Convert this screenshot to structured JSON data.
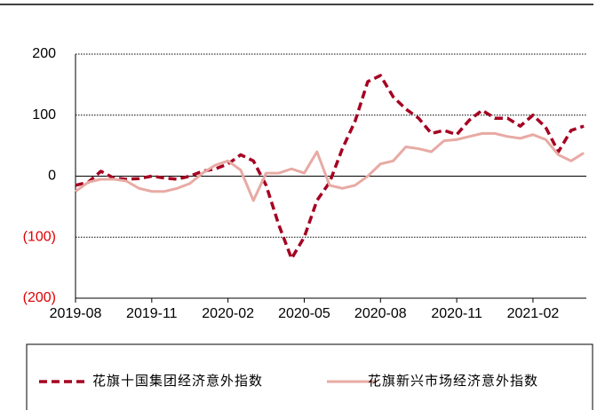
{
  "chart_data": {
    "type": "line",
    "x": [
      0,
      0.5,
      1,
      1.5,
      2,
      2.5,
      3,
      3.5,
      4,
      4.5,
      5,
      5.5,
      6,
      6.5,
      7,
      7.5,
      8,
      8.5,
      9,
      9.5,
      10,
      10.5,
      11,
      11.5,
      12,
      12.5,
      13,
      13.5,
      14,
      14.5,
      15,
      15.5,
      16,
      16.5,
      17,
      17.5,
      18,
      18.5,
      19,
      19.5,
      20
    ],
    "series": [
      {
        "name": "花旗十国集团经济意外指数",
        "color": "#a50021",
        "dashed": true,
        "values": [
          -15,
          -10,
          8,
          -3,
          -5,
          -4,
          0,
          -3,
          -5,
          0,
          8,
          12,
          20,
          35,
          25,
          -15,
          -80,
          -135,
          -100,
          -40,
          -10,
          45,
          90,
          155,
          165,
          130,
          110,
          95,
          70,
          75,
          68,
          92,
          108,
          95,
          95,
          82,
          100,
          80,
          40,
          75,
          82
        ]
      },
      {
        "name": "花旗新兴市场经济意外指数",
        "color": "#e8aaa4",
        "dashed": false,
        "values": [
          -25,
          -10,
          -5,
          -5,
          -8,
          -20,
          -25,
          -25,
          -20,
          -12,
          5,
          18,
          25,
          10,
          -40,
          5,
          5,
          12,
          5,
          40,
          -15,
          -20,
          -15,
          0,
          20,
          25,
          48,
          45,
          40,
          58,
          60,
          65,
          70,
          70,
          65,
          62,
          68,
          60,
          35,
          25,
          38
        ]
      }
    ],
    "xlim": [
      0,
      20.1
    ],
    "xticks": [
      {
        "value": 0,
        "label": "2019-08"
      },
      {
        "value": 3,
        "label": "2019-11"
      },
      {
        "value": 6,
        "label": "2020-02"
      },
      {
        "value": 9,
        "label": "2020-05"
      },
      {
        "value": 12,
        "label": "2020-08"
      },
      {
        "value": 15,
        "label": "2020-11"
      },
      {
        "value": 18,
        "label": "2021-02"
      }
    ],
    "ylim": [
      -200,
      200
    ],
    "yticks": [
      {
        "value": -200,
        "label": "(200)"
      },
      {
        "value": -100,
        "label": "(100)"
      },
      0,
      100,
      200
    ],
    "negative_tick_color": "#e00000",
    "grid": true,
    "legend": "bottom"
  }
}
